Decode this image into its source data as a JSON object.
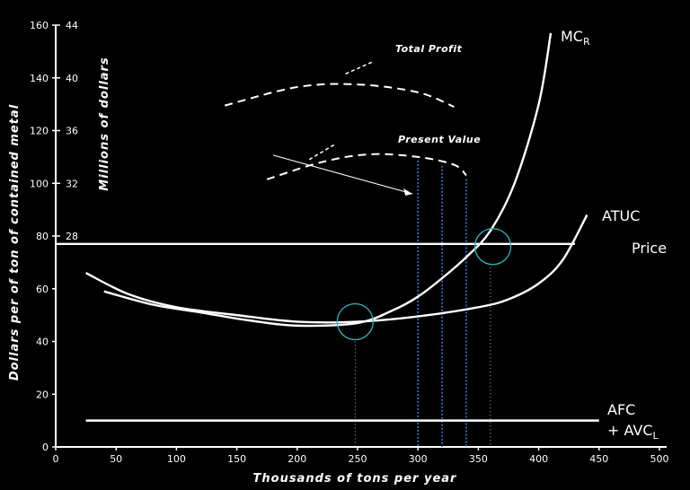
{
  "chart_data": {
    "type": "line",
    "xlabel": "Thousands of tons per year",
    "ylabel": "Dollars per of ton of contained metal",
    "ylabel_right": "Millions of dollars",
    "xlim": [
      0,
      500
    ],
    "ylim": [
      0,
      160
    ],
    "x_ticks": [
      "0",
      "50",
      "100",
      "150",
      "200",
      "250",
      "300",
      "350",
      "400",
      "450",
      "500"
    ],
    "y_ticks": [
      "0",
      "20",
      "40",
      "60",
      "80",
      "100",
      "120",
      "140",
      "160"
    ],
    "y_right_ticks": [
      "28",
      "32",
      "36",
      "40",
      "44"
    ],
    "series": [
      {
        "name": "MC",
        "name_sub": "R",
        "style": "solid",
        "x": [
          40,
          80,
          120,
          160,
          200,
          250,
          280,
          300,
          320,
          340,
          360,
          380,
          400,
          410
        ],
        "y": [
          59,
          54,
          51,
          48,
          46,
          47,
          52,
          57,
          64,
          72,
          82,
          100,
          130,
          157
        ]
      },
      {
        "name": "ATUC",
        "style": "solid",
        "x": [
          25,
          60,
          100,
          150,
          200,
          250,
          300,
          350,
          375,
          400,
          420,
          440
        ],
        "y": [
          66,
          58,
          53,
          50,
          47.5,
          47.5,
          49.5,
          53,
          56,
          62,
          71,
          88
        ]
      },
      {
        "name": "Price",
        "style": "solid",
        "x": [
          0,
          430
        ],
        "y": [
          77,
          77
        ]
      },
      {
        "name": "AFC",
        "name_line2": "+ AVC",
        "name_sub": "L",
        "style": "solid",
        "x": [
          25,
          450
        ],
        "y": [
          10,
          10
        ]
      },
      {
        "name": "Total Profit",
        "style": "dashed",
        "scale": "right",
        "x": [
          140,
          200,
          250,
          300,
          330
        ],
        "y": [
          37.9,
          39.3,
          39.5,
          38.9,
          37.8
        ]
      },
      {
        "name": "Present Value",
        "style": "dashed",
        "scale": "right",
        "x": [
          175,
          220,
          260,
          300,
          330,
          340
        ],
        "y": [
          32.3,
          33.6,
          34.2,
          34.0,
          33.4,
          32.6
        ]
      }
    ],
    "vertical_markers_x": [
      248,
      300,
      320,
      340,
      360
    ],
    "circle_markers": [
      {
        "x": 248,
        "y": 47.5
      },
      {
        "x": 362,
        "y": 76
      }
    ],
    "annotation_arrow": {
      "from": [
        180,
        110
      ],
      "to": [
        300,
        96
      ]
    },
    "colors": {
      "background": "#000000",
      "foreground": "#ffffff",
      "marker_lines": "#3a7bd5",
      "circles": "#2ab5c4"
    }
  }
}
